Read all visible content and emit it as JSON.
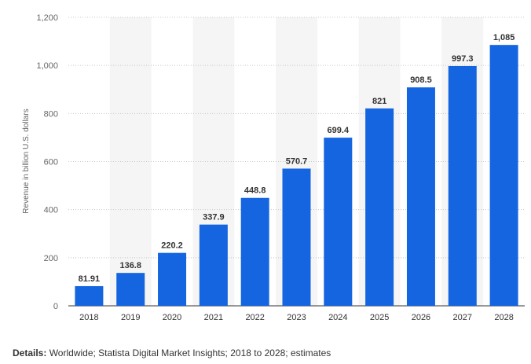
{
  "chart_data": {
    "type": "bar",
    "categories": [
      "2018",
      "2019",
      "2020",
      "2021",
      "2022",
      "2023",
      "2024",
      "2025",
      "2026",
      "2027",
      "2028"
    ],
    "values": [
      81.91,
      136.8,
      220.2,
      337.9,
      448.8,
      570.7,
      699.4,
      821,
      908.5,
      997.3,
      1085
    ],
    "value_labels": [
      "81.91",
      "136.8",
      "220.2",
      "337.9",
      "448.8",
      "570.7",
      "699.4",
      "821",
      "908.5",
      "997.3",
      "1,085"
    ],
    "y_ticks": [
      0,
      200,
      400,
      600,
      800,
      1000,
      1200
    ],
    "y_tick_labels": [
      "0",
      "200",
      "400",
      "600",
      "800",
      "1,000",
      "1,200"
    ],
    "ylim": [
      0,
      1200
    ],
    "ylabel": "Revenue in billion U.S. dollars",
    "xlabel": "",
    "grid": true,
    "bar_color": "#1565e0",
    "alt_band_color": "#f5f5f5"
  },
  "details": {
    "label": "Details:",
    "text": " Worldwide; Statista Digital Market Insights; 2018 to 2028; estimates"
  }
}
